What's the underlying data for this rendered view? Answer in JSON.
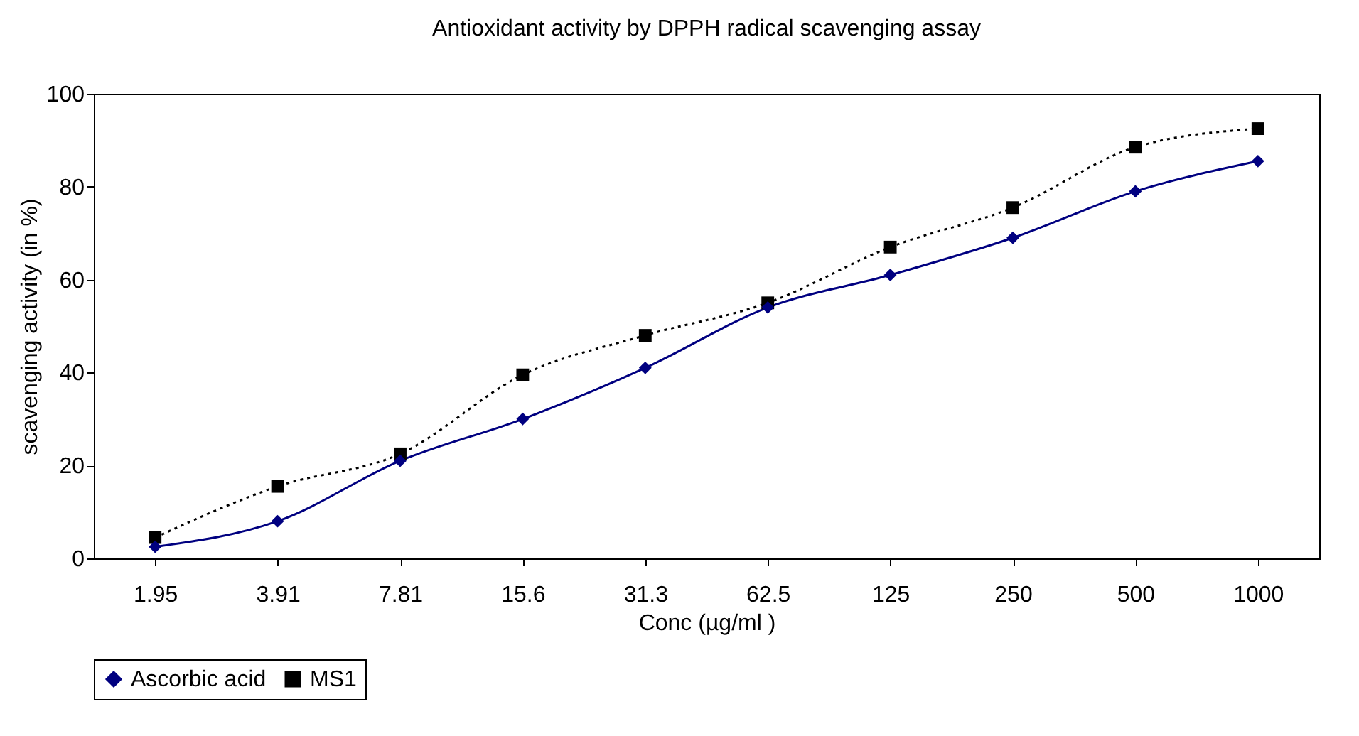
{
  "chart_data": {
    "type": "line",
    "title": "Antioxidant activity by DPPH radical scavenging assay",
    "xlabel": "Conc (µg/ml )",
    "ylabel": "scavenging activity (in %)",
    "categories": [
      "1.95",
      "3.91",
      "7.81",
      "15.6",
      "31.3",
      "62.5",
      "125",
      "250",
      "500",
      "1000"
    ],
    "series": [
      {
        "name": "Ascorbic acid",
        "color": "#000080",
        "marker": "diamond",
        "line_style": "solid",
        "values": [
          2.5,
          8,
          21,
          30,
          41,
          54,
          61,
          69,
          79,
          85.5
        ]
      },
      {
        "name": "MS1",
        "color": "#000000",
        "marker": "square",
        "line_style": "dotted",
        "values": [
          4.5,
          15.5,
          22.5,
          39.5,
          48,
          55,
          67,
          75.5,
          88.5,
          92.5
        ]
      }
    ],
    "ylim": [
      0,
      100
    ],
    "yticks": [
      0,
      20,
      40,
      60,
      80,
      100
    ],
    "grid": false,
    "legend": "bottom"
  }
}
